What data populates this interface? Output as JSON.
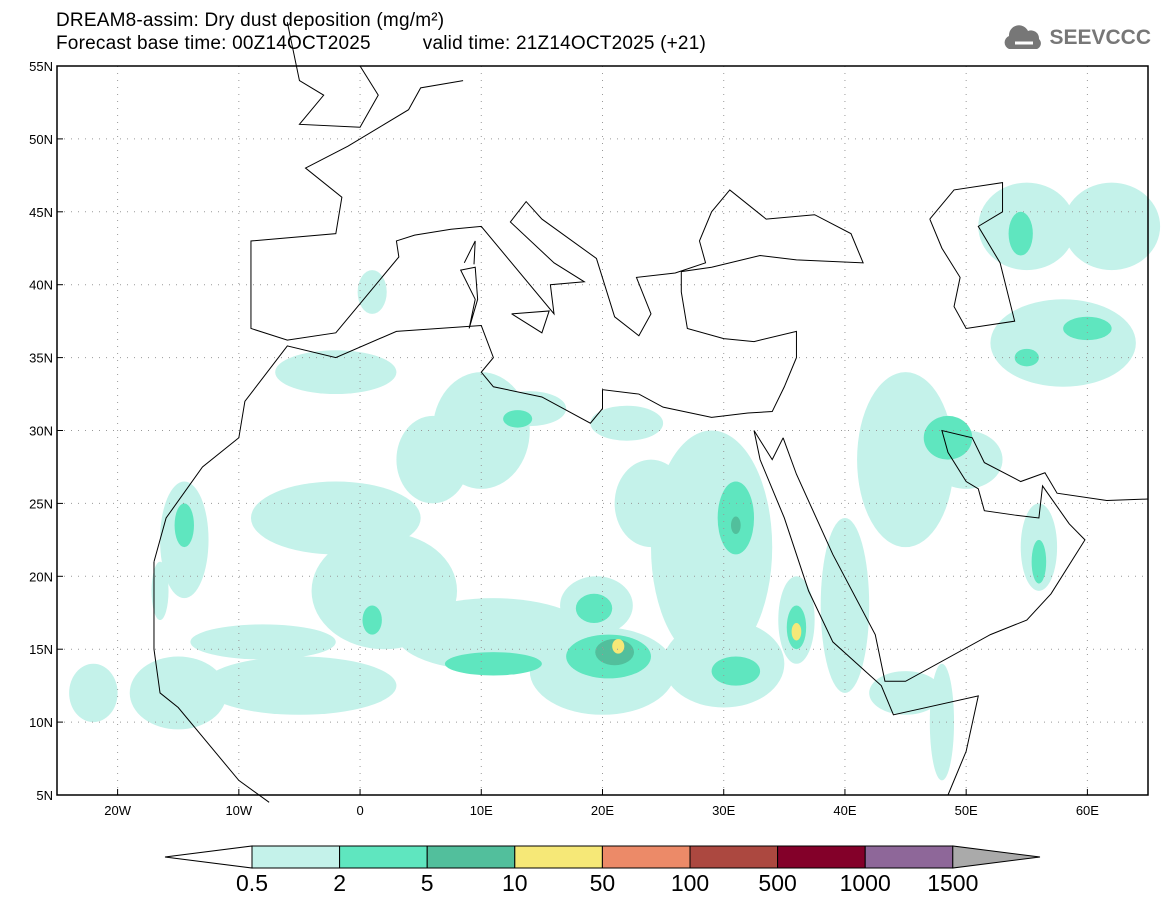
{
  "title": {
    "line1": "DREAM8-assim: Dry dust deposition (mg/m²)",
    "base": "Forecast base time: 00Z14OCT2025",
    "valid": "valid time: 21Z14OCT2025 (+21)"
  },
  "logo": {
    "text": "SEEVCCC",
    "icon": "cloud-icon"
  },
  "map": {
    "lon_range": [
      -25,
      65
    ],
    "lat_range": [
      5,
      55
    ],
    "lat_labels": [
      "5N",
      "10N",
      "15N",
      "20N",
      "25N",
      "30N",
      "35N",
      "40N",
      "45N",
      "50N",
      "55N"
    ],
    "lon_labels": [
      "20W",
      "10W",
      "0",
      "10E",
      "20E",
      "30E",
      "40E",
      "50E",
      "60E"
    ],
    "dust_areas": [
      {
        "lon": -15,
        "lat": 12,
        "rx": 4,
        "ry": 2.5,
        "level": 1
      },
      {
        "lon": -22,
        "lat": 12,
        "rx": 2,
        "ry": 2,
        "level": 1
      },
      {
        "lon": -14.5,
        "lat": 22.5,
        "rx": 2,
        "ry": 4,
        "level": 1
      },
      {
        "lon": -14.5,
        "lat": 23.5,
        "rx": 0.8,
        "ry": 1.5,
        "level": 2
      },
      {
        "lon": -16.5,
        "lat": 19,
        "rx": 0.7,
        "ry": 2,
        "level": 1
      },
      {
        "lon": -2,
        "lat": 24,
        "rx": 7,
        "ry": 2.5,
        "level": 1
      },
      {
        "lon": 2,
        "lat": 19,
        "rx": 6,
        "ry": 4,
        "level": 1
      },
      {
        "lon": 1,
        "lat": 17,
        "rx": 0.8,
        "ry": 1,
        "level": 2
      },
      {
        "lon": -8,
        "lat": 15.5,
        "rx": 6,
        "ry": 1.2,
        "level": 1
      },
      {
        "lon": -5,
        "lat": 12.5,
        "rx": 8,
        "ry": 2,
        "level": 1
      },
      {
        "lon": -2,
        "lat": 34,
        "rx": 5,
        "ry": 1.5,
        "level": 1
      },
      {
        "lon": 6,
        "lat": 28,
        "rx": 3,
        "ry": 3,
        "level": 1
      },
      {
        "lon": 10,
        "lat": 30,
        "rx": 4,
        "ry": 4,
        "level": 1
      },
      {
        "lon": 14,
        "lat": 31.5,
        "rx": 3,
        "ry": 1.2,
        "level": 1
      },
      {
        "lon": 13,
        "lat": 30.8,
        "rx": 1.2,
        "ry": 0.6,
        "level": 2
      },
      {
        "lon": 11,
        "lat": 16,
        "rx": 8,
        "ry": 2.5,
        "level": 1
      },
      {
        "lon": 11,
        "lat": 14,
        "rx": 4,
        "ry": 0.8,
        "level": 2
      },
      {
        "lon": 20,
        "lat": 13.5,
        "rx": 6,
        "ry": 3,
        "level": 1
      },
      {
        "lon": 20.5,
        "lat": 14.5,
        "rx": 3.5,
        "ry": 1.5,
        "level": 2
      },
      {
        "lon": 21,
        "lat": 14.8,
        "rx": 1.6,
        "ry": 0.9,
        "level": 3
      },
      {
        "lon": 21.3,
        "lat": 15.2,
        "rx": 0.5,
        "ry": 0.5,
        "level": 4
      },
      {
        "lon": 19.5,
        "lat": 18,
        "rx": 3,
        "ry": 2,
        "level": 1
      },
      {
        "lon": 19.3,
        "lat": 17.8,
        "rx": 1.5,
        "ry": 1,
        "level": 2
      },
      {
        "lon": 24,
        "lat": 25,
        "rx": 3,
        "ry": 3,
        "level": 1
      },
      {
        "lon": 29,
        "lat": 22,
        "rx": 5,
        "ry": 8,
        "level": 1
      },
      {
        "lon": 31,
        "lat": 24,
        "rx": 1.5,
        "ry": 2.5,
        "level": 2
      },
      {
        "lon": 31,
        "lat": 23.5,
        "rx": 0.4,
        "ry": 0.6,
        "level": 3
      },
      {
        "lon": 30,
        "lat": 14,
        "rx": 5,
        "ry": 3,
        "level": 1
      },
      {
        "lon": 31,
        "lat": 13.5,
        "rx": 2,
        "ry": 1,
        "level": 2
      },
      {
        "lon": 36,
        "lat": 17,
        "rx": 1.5,
        "ry": 3,
        "level": 1
      },
      {
        "lon": 36,
        "lat": 16.5,
        "rx": 0.8,
        "ry": 1.5,
        "level": 2
      },
      {
        "lon": 36,
        "lat": 16.2,
        "rx": 0.4,
        "ry": 0.6,
        "level": 4
      },
      {
        "lon": 40,
        "lat": 18,
        "rx": 2,
        "ry": 6,
        "level": 1
      },
      {
        "lon": 45,
        "lat": 28,
        "rx": 4,
        "ry": 6,
        "level": 1
      },
      {
        "lon": 45,
        "lat": 12,
        "rx": 3,
        "ry": 1.5,
        "level": 1
      },
      {
        "lon": 48.5,
        "lat": 29.5,
        "rx": 2,
        "ry": 1.5,
        "level": 2
      },
      {
        "lon": 50,
        "lat": 28,
        "rx": 3,
        "ry": 2,
        "level": 1
      },
      {
        "lon": 56,
        "lat": 22,
        "rx": 1.5,
        "ry": 3,
        "level": 1
      },
      {
        "lon": 56,
        "lat": 21,
        "rx": 0.6,
        "ry": 1.5,
        "level": 2
      },
      {
        "lon": 58,
        "lat": 36,
        "rx": 6,
        "ry": 3,
        "level": 1
      },
      {
        "lon": 55,
        "lat": 35,
        "rx": 1,
        "ry": 0.6,
        "level": 2
      },
      {
        "lon": 60,
        "lat": 37,
        "rx": 2,
        "ry": 0.8,
        "level": 2
      },
      {
        "lon": 55,
        "lat": 44,
        "rx": 4,
        "ry": 3,
        "level": 1
      },
      {
        "lon": 54.5,
        "lat": 43.5,
        "rx": 1,
        "ry": 1.5,
        "level": 2
      },
      {
        "lon": 62,
        "lat": 44,
        "rx": 4,
        "ry": 3,
        "level": 1
      },
      {
        "lon": 48,
        "lat": 10,
        "rx": 1,
        "ry": 4,
        "level": 1
      },
      {
        "lon": 1,
        "lat": 39.5,
        "rx": 1.2,
        "ry": 1.5,
        "level": 1
      },
      {
        "lon": 22,
        "lat": 30.5,
        "rx": 3,
        "ry": 1.2,
        "level": 1
      }
    ]
  },
  "colorbar": {
    "colors": [
      "#c4f2ea",
      "#5fe6bf",
      "#52bf9c",
      "#f6e877",
      "#ec8a68",
      "#ac4840",
      "#830029",
      "#8e6799"
    ],
    "under_color": "#ffffff",
    "over_color": "#aaaaaa",
    "labels": [
      "0.5",
      "2",
      "5",
      "10",
      "50",
      "100",
      "500",
      "1000",
      "1500"
    ]
  }
}
